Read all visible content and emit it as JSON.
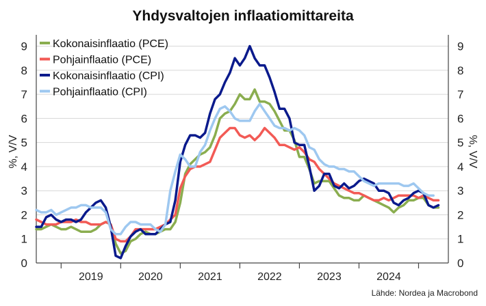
{
  "chart_data": {
    "type": "line",
    "title": "Yhdysvaltojen inflaatiomittareita",
    "ylabel_left": "%, V/V",
    "ylabel_right": "%, V/V",
    "source": "Lähde: Nordea ja Macrobond",
    "ylim": [
      0,
      9.3
    ],
    "yticks": [
      0,
      1,
      2,
      3,
      4,
      5,
      6,
      7,
      8,
      9
    ],
    "x_start": 2018.583,
    "x_end": 2025.5,
    "year_boundaries": [
      2019,
      2020,
      2021,
      2022,
      2023,
      2024,
      2025
    ],
    "year_labels": [
      "2019",
      "2020",
      "2021",
      "2022",
      "2023",
      "2024"
    ],
    "grid": true,
    "legend_position": "top-left",
    "series": [
      {
        "name": "Kokonaisinflaatio (PCE)",
        "color": "#8aad4f",
        "start": 2018.583,
        "values": [
          1.4,
          1.4,
          1.5,
          1.6,
          1.5,
          1.4,
          1.4,
          1.5,
          1.4,
          1.3,
          1.3,
          1.3,
          1.4,
          1.6,
          1.7,
          1.6,
          0.8,
          0.4,
          0.5,
          0.9,
          1.0,
          1.2,
          1.3,
          1.2,
          1.2,
          1.3,
          1.4,
          1.4,
          1.7,
          2.5,
          3.7,
          4.1,
          4.3,
          4.5,
          4.6,
          4.8,
          5.3,
          6.0,
          6.2,
          6.3,
          6.6,
          7.0,
          6.8,
          6.8,
          7.2,
          6.7,
          6.7,
          6.6,
          6.3,
          5.9,
          5.5,
          5.5,
          5.1,
          4.4,
          4.4,
          3.9,
          3.3,
          3.4,
          3.4,
          3.4,
          3.1,
          2.8,
          2.7,
          2.7,
          2.6,
          2.6,
          2.8,
          2.7,
          2.6,
          2.5,
          2.4,
          2.3,
          2.1,
          2.3,
          2.4,
          2.6,
          2.6,
          2.7,
          2.7,
          2.4,
          2.3,
          2.3
        ]
      },
      {
        "name": "Pohjainflaatio (PCE)",
        "color": "#f25a55",
        "start": 2018.583,
        "values": [
          1.8,
          1.7,
          1.6,
          1.6,
          1.6,
          1.7,
          1.7,
          1.7,
          1.8,
          1.7,
          1.7,
          1.6,
          1.6,
          1.6,
          1.7,
          1.6,
          1.0,
          0.9,
          0.9,
          1.1,
          1.4,
          1.4,
          1.4,
          1.4,
          1.4,
          1.5,
          1.6,
          1.8,
          2.0,
          3.1,
          3.6,
          3.9,
          4.0,
          4.0,
          4.1,
          4.2,
          4.7,
          5.2,
          5.4,
          5.6,
          5.6,
          5.3,
          5.2,
          5.3,
          5.1,
          5.3,
          5.6,
          5.4,
          5.2,
          4.9,
          4.9,
          4.8,
          4.7,
          4.8,
          4.6,
          4.3,
          4.2,
          3.9,
          3.7,
          3.5,
          3.3,
          3.2,
          3.1,
          3.0,
          2.9,
          2.9,
          2.8,
          2.7,
          2.6,
          2.6,
          2.7,
          2.6,
          2.7,
          2.8,
          2.8,
          2.8,
          2.8,
          2.7,
          2.8,
          2.7,
          2.6,
          2.6
        ]
      },
      {
        "name": "Kokonaisinflaatio (CPI)",
        "color": "#0a1a8c",
        "start": 2018.583,
        "values": [
          1.5,
          1.5,
          1.9,
          2.0,
          1.8,
          1.7,
          1.8,
          1.8,
          1.7,
          1.8,
          2.1,
          2.3,
          2.5,
          2.6,
          2.3,
          1.5,
          0.3,
          0.2,
          0.7,
          1.1,
          1.3,
          1.4,
          1.2,
          1.2,
          1.2,
          1.4,
          1.6,
          1.7,
          2.6,
          4.2,
          4.9,
          5.3,
          5.3,
          5.2,
          5.4,
          6.2,
          6.8,
          7.0,
          7.5,
          7.9,
          8.5,
          8.2,
          8.5,
          9.0,
          8.5,
          8.2,
          8.2,
          7.7,
          7.1,
          6.4,
          6.4,
          6.0,
          5.0,
          4.9,
          4.9,
          4.0,
          3.0,
          3.2,
          3.7,
          3.7,
          3.2,
          3.1,
          3.3,
          3.1,
          3.2,
          3.4,
          3.5,
          3.4,
          3.3,
          3.0,
          3.0,
          2.9,
          2.5,
          2.4,
          2.6,
          2.7,
          2.9,
          3.0,
          2.9,
          2.4,
          2.3,
          2.4
        ]
      },
      {
        "name": "Pohjainflaatio (CPI)",
        "color": "#9ec8f0",
        "start": 2018.583,
        "values": [
          2.2,
          2.1,
          2.1,
          2.2,
          2.0,
          2.1,
          2.2,
          2.3,
          2.3,
          2.4,
          2.4,
          2.3,
          2.3,
          2.3,
          2.1,
          1.4,
          1.2,
          1.2,
          1.5,
          1.7,
          1.7,
          1.6,
          1.6,
          1.6,
          1.4,
          1.3,
          1.6,
          3.0,
          3.8,
          4.5,
          4.3,
          4.0,
          4.0,
          4.6,
          4.9,
          5.5,
          6.0,
          6.4,
          6.5,
          6.3,
          6.0,
          5.9,
          5.9,
          5.9,
          6.3,
          6.6,
          6.3,
          6.0,
          5.7,
          5.6,
          5.6,
          5.5,
          5.6,
          5.5,
          5.3,
          4.8,
          4.7,
          4.3,
          4.1,
          4.0,
          4.0,
          3.9,
          3.9,
          3.8,
          3.8,
          3.6,
          3.4,
          3.3,
          3.2,
          3.3,
          3.3,
          3.3,
          3.3,
          3.3,
          3.2,
          3.2,
          3.3,
          3.1,
          2.9,
          2.8,
          2.8
        ]
      }
    ]
  }
}
